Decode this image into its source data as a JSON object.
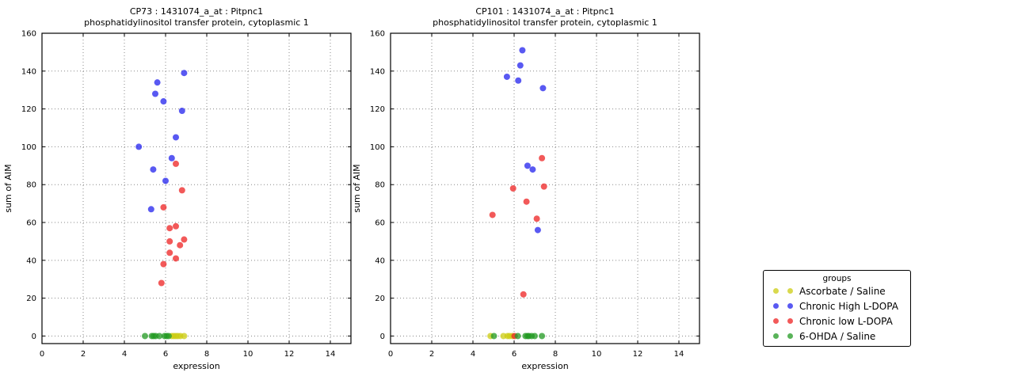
{
  "legend": {
    "title": "groups",
    "entries": [
      {
        "label": "Ascorbate / Saline",
        "color": "#cccc11"
      },
      {
        "label": "Chronic High L-DOPA",
        "color": "#2222ee"
      },
      {
        "label": "Chronic low L-DOPA",
        "color": "#ee2222"
      },
      {
        "label": "6-OHDA / Saline",
        "color": "#229922"
      }
    ]
  },
  "chart_data": [
    {
      "type": "scatter",
      "title_line1": "CP73 : 1431074_a_at : Pitpnc1",
      "title_line2": "phosphatidylinositol transfer protein, cytoplasmic 1",
      "xlabel": "expression",
      "ylabel": "sum of AIM",
      "xlim": [
        0,
        15
      ],
      "ylim": [
        -4,
        160
      ],
      "xticks": [
        0,
        2,
        4,
        6,
        8,
        10,
        12,
        14
      ],
      "yticks": [
        0,
        20,
        40,
        60,
        80,
        100,
        120,
        140,
        160
      ],
      "grid": true,
      "series": [
        {
          "name": "Ascorbate / Saline",
          "color": "#cccc11",
          "points": [
            [
              6.3,
              0
            ],
            [
              6.4,
              0
            ],
            [
              6.5,
              0
            ],
            [
              6.6,
              0
            ],
            [
              6.72,
              0
            ],
            [
              6.9,
              0
            ]
          ]
        },
        {
          "name": "Chronic High L-DOPA",
          "color": "#2222ee",
          "points": [
            [
              6.9,
              139
            ],
            [
              5.6,
              134
            ],
            [
              5.5,
              128
            ],
            [
              5.9,
              124
            ],
            [
              6.8,
              119
            ],
            [
              6.5,
              105
            ],
            [
              4.7,
              100
            ],
            [
              6.3,
              94
            ],
            [
              5.4,
              88
            ],
            [
              6.0,
              82
            ],
            [
              5.3,
              67
            ]
          ]
        },
        {
          "name": "Chronic low L-DOPA",
          "color": "#ee2222",
          "points": [
            [
              6.5,
              91
            ],
            [
              6.8,
              77
            ],
            [
              5.9,
              68
            ],
            [
              6.5,
              58
            ],
            [
              6.2,
              57
            ],
            [
              6.9,
              51
            ],
            [
              6.2,
              50
            ],
            [
              6.7,
              48
            ],
            [
              6.2,
              44
            ],
            [
              6.5,
              41
            ],
            [
              5.9,
              38
            ],
            [
              5.8,
              28
            ]
          ]
        },
        {
          "name": "6-OHDA / Saline",
          "color": "#229922",
          "points": [
            [
              5.0,
              0
            ],
            [
              5.33,
              0
            ],
            [
              5.42,
              0
            ],
            [
              5.52,
              0
            ],
            [
              5.7,
              0
            ],
            [
              5.95,
              0
            ],
            [
              6.05,
              0
            ],
            [
              6.15,
              0
            ]
          ]
        }
      ]
    },
    {
      "type": "scatter",
      "title_line1": "CP101 : 1431074_a_at : Pitpnc1",
      "title_line2": "phosphatidylinositol transfer protein, cytoplasmic 1",
      "xlabel": "expression",
      "ylabel": "sum of AIM",
      "xlim": [
        0,
        15
      ],
      "ylim": [
        -4,
        160
      ],
      "xticks": [
        0,
        2,
        4,
        6,
        8,
        10,
        12,
        14
      ],
      "yticks": [
        0,
        20,
        40,
        60,
        80,
        100,
        120,
        140,
        160
      ],
      "grid": true,
      "series": [
        {
          "name": "Ascorbate / Saline",
          "color": "#cccc11",
          "points": [
            [
              4.85,
              0
            ],
            [
              5.48,
              0
            ],
            [
              5.68,
              0
            ],
            [
              5.78,
              0
            ],
            [
              5.92,
              0
            ]
          ]
        },
        {
          "name": "Chronic High L-DOPA",
          "color": "#2222ee",
          "points": [
            [
              6.4,
              151
            ],
            [
              6.3,
              143
            ],
            [
              5.65,
              137
            ],
            [
              6.2,
              135
            ],
            [
              7.4,
              131
            ],
            [
              6.65,
              90
            ],
            [
              6.9,
              88
            ],
            [
              7.15,
              56
            ]
          ]
        },
        {
          "name": "Chronic low L-DOPA",
          "color": "#ee2222",
          "points": [
            [
              7.35,
              94
            ],
            [
              7.45,
              79
            ],
            [
              5.95,
              78
            ],
            [
              6.6,
              71
            ],
            [
              4.95,
              64
            ],
            [
              7.1,
              62
            ],
            [
              6.45,
              22
            ],
            [
              6.02,
              0
            ]
          ]
        },
        {
          "name": "6-OHDA / Saline",
          "color": "#229922",
          "points": [
            [
              5.02,
              0
            ],
            [
              6.18,
              0
            ],
            [
              6.55,
              0
            ],
            [
              6.65,
              0
            ],
            [
              6.72,
              0
            ],
            [
              6.85,
              0
            ],
            [
              7.0,
              0
            ],
            [
              7.35,
              0
            ]
          ]
        }
      ]
    }
  ]
}
